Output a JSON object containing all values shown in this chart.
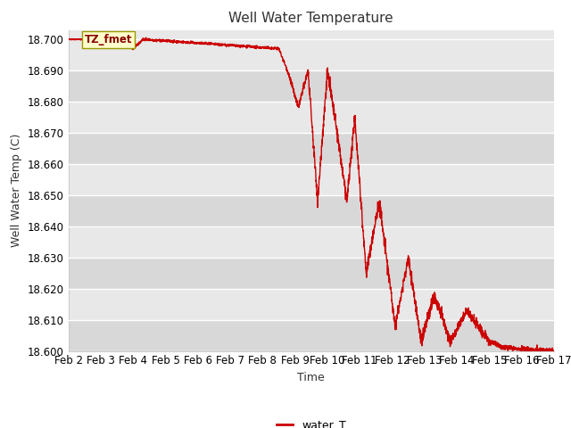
{
  "title": "Well Water Temperature",
  "xlabel": "Time",
  "ylabel": "Well Water Temp (C)",
  "line_color": "#cc0000",
  "line_width": 1.0,
  "fig_bg_color": "#ffffff",
  "plot_bg_color": "#e8e8e8",
  "band_color_light": "#f0f0f0",
  "band_color_dark": "#e0e0e0",
  "ylim": [
    18.6,
    18.703
  ],
  "yticks": [
    18.6,
    18.61,
    18.62,
    18.63,
    18.64,
    18.65,
    18.66,
    18.67,
    18.68,
    18.69,
    18.7
  ],
  "legend_label": "water_T",
  "annotation_text": "TZ_fmet",
  "x_tick_labels": [
    "Feb 2",
    "Feb 3",
    "Feb 4",
    "Feb 5",
    "Feb 6",
    "Feb 7",
    "Feb 8",
    "Feb 9",
    "Feb 10",
    "Feb 11",
    "Feb 12",
    "Feb 13",
    "Feb 14",
    "Feb 15",
    "Feb 16",
    "Feb 17"
  ],
  "title_fontsize": 11,
  "axis_label_fontsize": 9,
  "tick_fontsize": 8.5
}
